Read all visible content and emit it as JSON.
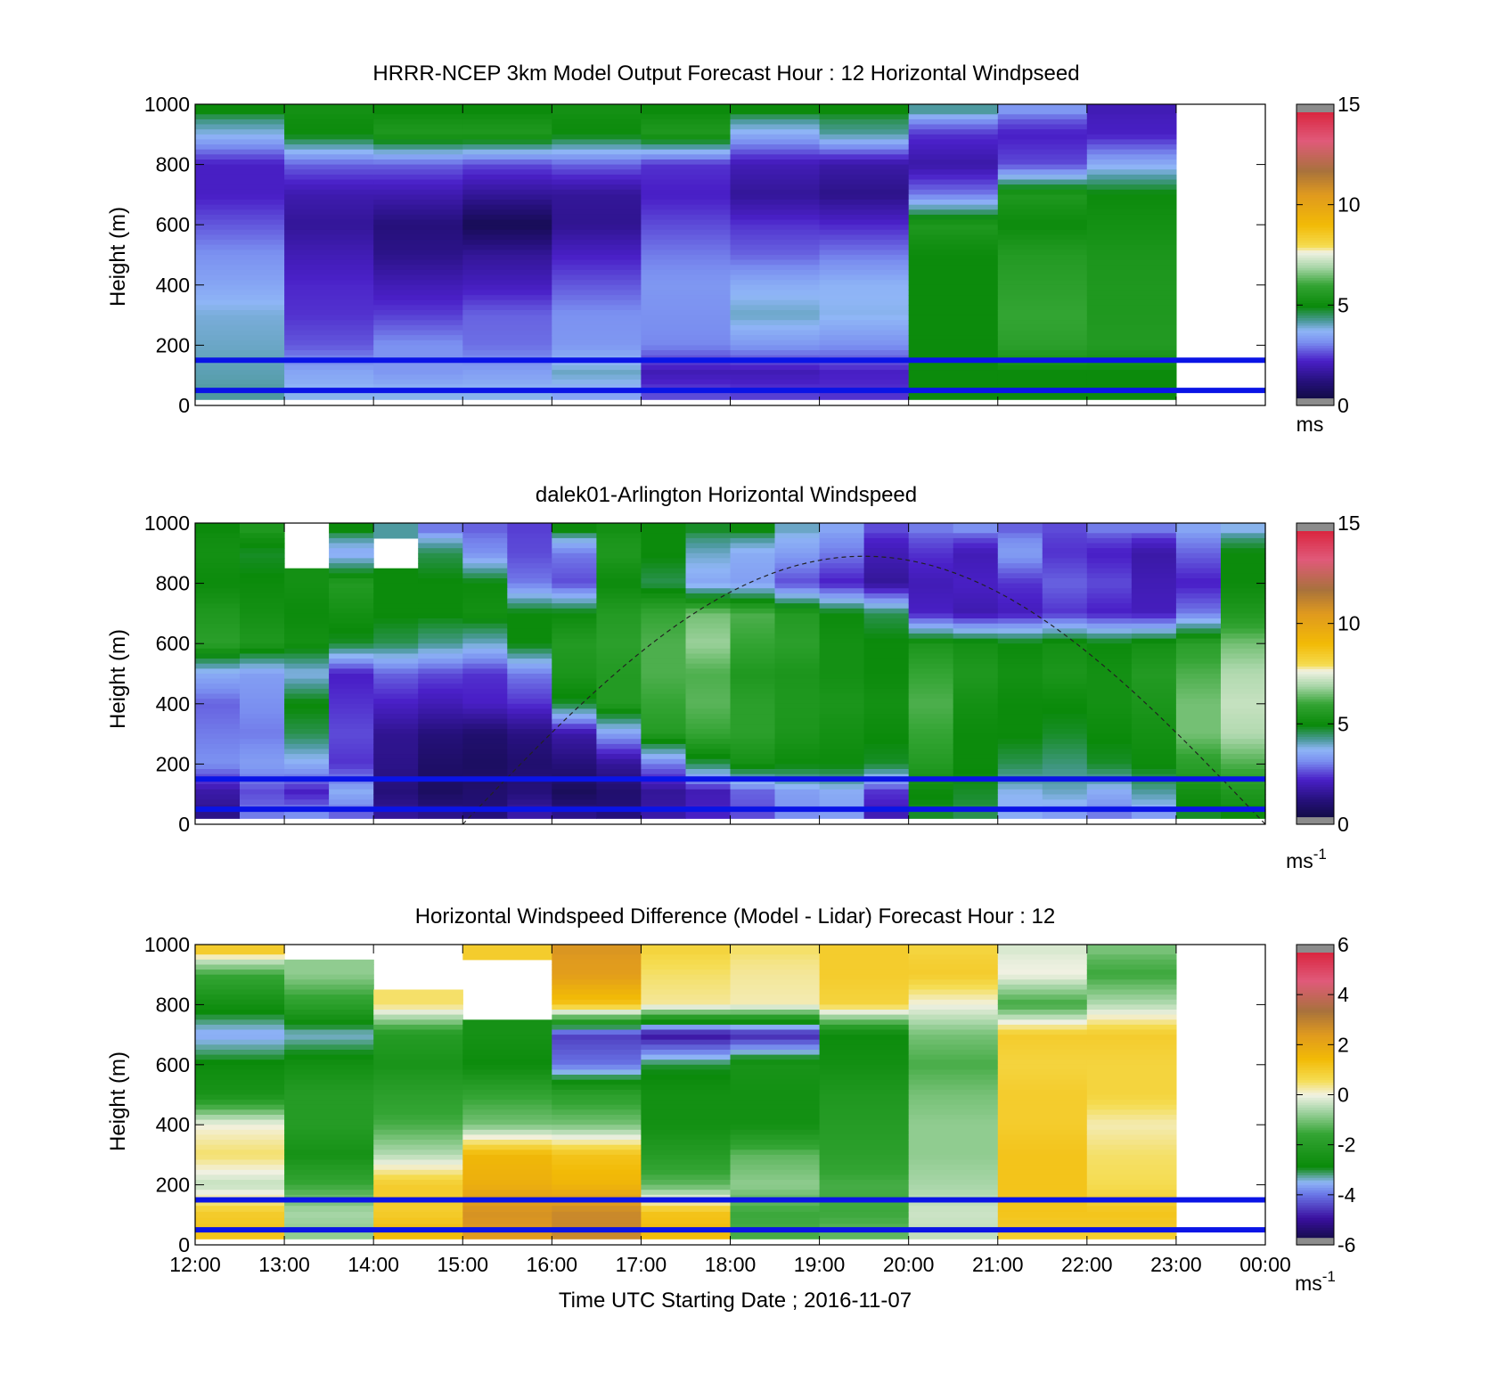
{
  "chart_data": [
    {
      "type": "heatmap",
      "title": "HRRR-NCEP 3km Model Output   Forecast Hour : 12 Horizontal Windpseed",
      "ylabel": "Height (m)",
      "ylim": [
        0,
        1000
      ],
      "yticks": [
        "0",
        "200",
        "400",
        "600",
        "800",
        "1000"
      ],
      "xlim_hours": [
        12,
        24
      ],
      "x_hours": [
        12,
        13,
        14,
        15,
        16,
        17,
        18,
        19,
        20,
        21,
        22
      ],
      "heights_m": [
        1000,
        900,
        800,
        700,
        600,
        500,
        400,
        300,
        200,
        100,
        40
      ],
      "values": [
        [
          5.0,
          5.2,
          5.0,
          5.0,
          5.2,
          5.0,
          5.0,
          5.0,
          4.2,
          3.3,
          2.0
        ],
        [
          3.8,
          5.0,
          5.5,
          5.5,
          5.0,
          5.5,
          3.6,
          4.2,
          2.4,
          2.2,
          2.2
        ],
        [
          2.2,
          2.8,
          2.8,
          2.6,
          2.8,
          2.4,
          2.0,
          1.8,
          1.8,
          2.6,
          3.6
        ],
        [
          2.2,
          1.9,
          1.9,
          1.6,
          1.6,
          2.2,
          1.6,
          1.4,
          3.0,
          5.5,
          5.0
        ],
        [
          2.7,
          1.6,
          1.2,
          0.6,
          1.5,
          2.6,
          2.4,
          2.3,
          5.5,
          5.0,
          5.2
        ],
        [
          3.2,
          2.0,
          1.4,
          1.6,
          2.2,
          3.0,
          2.8,
          3.0,
          5.0,
          5.6,
          5.4
        ],
        [
          3.5,
          2.3,
          2.0,
          2.1,
          2.7,
          3.3,
          3.6,
          3.7,
          5.0,
          5.8,
          5.5
        ],
        [
          3.9,
          2.4,
          2.5,
          2.8,
          3.2,
          3.2,
          4.0,
          3.8,
          5.0,
          6.0,
          5.5
        ],
        [
          4.0,
          2.7,
          3.2,
          2.9,
          3.3,
          3.1,
          3.3,
          3.2,
          5.0,
          5.8,
          5.6
        ],
        [
          4.1,
          3.5,
          3.3,
          3.4,
          4.0,
          2.0,
          2.0,
          2.2,
          5.0,
          5.0,
          5.0
        ],
        [
          4.2,
          3.8,
          3.8,
          3.8,
          3.5,
          2.6,
          2.5,
          2.4,
          5.0,
          5.0,
          5.0
        ]
      ],
      "reference_lines_m": [
        150,
        50
      ],
      "reference_line_color": "#0a14e6",
      "colorbar": {
        "ticks": [
          "0",
          "5",
          "10",
          "15"
        ],
        "range": [
          0,
          15
        ],
        "unit": "ms"
      }
    },
    {
      "type": "heatmap",
      "title": "dalek01-Arlington  Horizontal Windspeed",
      "ylabel": "Height (m)",
      "ylim": [
        0,
        1000
      ],
      "yticks": [
        "0",
        "200",
        "400",
        "600",
        "800",
        "1000"
      ],
      "xlim_hours": [
        12,
        24
      ],
      "x_hours": [
        12.0,
        12.5,
        13.0,
        13.5,
        14.0,
        14.5,
        15.0,
        15.5,
        16.0,
        16.5,
        17.0,
        17.5,
        18.0,
        18.5,
        19.0,
        19.5,
        20.0,
        20.5,
        21.0,
        21.5,
        22.0,
        22.5,
        23.0,
        23.5
      ],
      "heights_m": [
        1000,
        900,
        800,
        700,
        600,
        500,
        400,
        300,
        200,
        100,
        30
      ],
      "values": [
        [
          5.0,
          5.5,
          null,
          5.0,
          4.2,
          3.0,
          2.8,
          2.5,
          5.0,
          5.2,
          5.0,
          4.8,
          5.0,
          4.0,
          3.5,
          2.6,
          3.0,
          3.2,
          2.8,
          2.6,
          3.0,
          3.0,
          3.5,
          3.8
        ],
        [
          5.2,
          4.8,
          null,
          3.5,
          null,
          4.6,
          3.2,
          2.6,
          3.0,
          5.5,
          5.0,
          4.0,
          3.6,
          3.4,
          3.0,
          2.0,
          2.4,
          2.0,
          3.4,
          2.4,
          2.2,
          1.8,
          2.8,
          5.0
        ],
        [
          5.0,
          5.0,
          5.2,
          5.6,
          5.0,
          5.0,
          5.0,
          3.0,
          2.6,
          5.0,
          4.6,
          3.5,
          3.4,
          2.6,
          2.2,
          1.6,
          2.0,
          2.2,
          2.4,
          2.8,
          2.6,
          2.0,
          2.2,
          5.0
        ],
        [
          5.5,
          5.2,
          5.0,
          5.2,
          5.0,
          5.0,
          5.2,
          5.0,
          5.0,
          5.6,
          6.0,
          6.5,
          6.2,
          5.6,
          5.0,
          4.6,
          2.2,
          1.9,
          2.1,
          2.4,
          2.2,
          2.1,
          3.0,
          5.5
        ],
        [
          5.8,
          5.5,
          5.2,
          4.8,
          4.6,
          4.3,
          4.0,
          5.0,
          5.6,
          5.8,
          6.2,
          6.8,
          6.0,
          5.8,
          5.2,
          5.0,
          5.4,
          5.2,
          5.0,
          5.2,
          5.0,
          5.2,
          5.8,
          6.5
        ],
        [
          3.6,
          3.4,
          3.8,
          2.2,
          2.8,
          2.6,
          2.4,
          3.0,
          5.4,
          5.6,
          6.2,
          6.2,
          5.5,
          5.4,
          5.2,
          5.0,
          6.0,
          5.5,
          5.2,
          5.4,
          5.2,
          5.6,
          6.2,
          7.0
        ],
        [
          2.8,
          3.2,
          5.0,
          2.4,
          2.2,
          2.0,
          2.2,
          2.4,
          4.8,
          5.6,
          6.0,
          6.3,
          5.8,
          5.5,
          5.4,
          5.2,
          6.2,
          5.2,
          5.0,
          5.0,
          5.2,
          5.4,
          6.5,
          7.2
        ],
        [
          3.0,
          3.0,
          4.6,
          2.6,
          1.5,
          1.2,
          1.0,
          1.3,
          1.8,
          3.4,
          5.6,
          6.0,
          5.8,
          5.4,
          5.2,
          5.0,
          6.0,
          5.0,
          5.0,
          4.8,
          5.0,
          5.2,
          6.5,
          7.0
        ],
        [
          3.2,
          3.4,
          3.6,
          2.4,
          1.4,
          0.9,
          0.8,
          1.0,
          1.2,
          1.6,
          3.0,
          4.6,
          5.2,
          5.0,
          5.0,
          4.8,
          5.6,
          5.0,
          4.6,
          4.4,
          4.8,
          5.0,
          5.8,
          6.2
        ],
        [
          1.8,
          2.6,
          2.2,
          3.6,
          1.2,
          0.8,
          1.0,
          1.2,
          0.7,
          1.0,
          1.6,
          2.0,
          2.8,
          3.4,
          3.6,
          2.4,
          5.0,
          4.8,
          3.8,
          4.0,
          3.6,
          4.2,
          5.2,
          5.5
        ],
        [
          1.4,
          3.0,
          3.2,
          2.8,
          1.6,
          1.4,
          1.2,
          1.8,
          1.4,
          1.2,
          1.8,
          2.2,
          2.6,
          3.2,
          3.4,
          2.0,
          4.8,
          4.6,
          3.6,
          3.4,
          3.0,
          3.4,
          4.8,
          5.0
        ]
      ],
      "curve_label": "",
      "reference_lines_m": [
        150,
        50
      ],
      "reference_line_color": "#0a14e6",
      "colorbar": {
        "ticks": [
          "0",
          "5",
          "10",
          "15"
        ],
        "range": [
          0,
          15
        ],
        "unit": "ms",
        "unit_exp": "-1"
      }
    },
    {
      "type": "heatmap",
      "title": "Horizontal Windspeed Difference (Model - Lidar) Forecast Hour : 12",
      "ylabel": "Height (m)",
      "xlabel": "Time UTC  Starting Date ; 2016-11-07",
      "ylim": [
        0,
        1000
      ],
      "yticks": [
        "0",
        "200",
        "400",
        "600",
        "800",
        "1000"
      ],
      "xlim_hours": [
        12,
        24
      ],
      "xticks": [
        "12:00",
        "13:00",
        "14:00",
        "15:00",
        "16:00",
        "17:00",
        "18:00",
        "19:00",
        "20:00",
        "21:00",
        "22:00",
        "23:00",
        "00:00"
      ],
      "x_hours": [
        12,
        13,
        14,
        15,
        16,
        17,
        18,
        19,
        20,
        21,
        22
      ],
      "heights_m": [
        1000,
        900,
        800,
        700,
        600,
        500,
        400,
        300,
        200,
        100,
        40
      ],
      "values": [
        [
          1.0,
          null,
          null,
          1.0,
          2.5,
          0.8,
          0.5,
          1.0,
          0.8,
          -0.2,
          -1.0
        ],
        [
          -1.5,
          -0.8,
          null,
          null,
          2.3,
          0.5,
          0.3,
          1.0,
          1.0,
          0.0,
          -1.5
        ],
        [
          -2.6,
          -1.8,
          0.5,
          null,
          1.2,
          0.3,
          0.2,
          0.8,
          0.0,
          -1.5,
          -0.5
        ],
        [
          -3.6,
          -3.4,
          -2.0,
          -2.5,
          -4.5,
          -5.0,
          -4.8,
          -2.8,
          -1.0,
          1.0,
          1.0
        ],
        [
          -2.8,
          -2.6,
          -2.4,
          -2.8,
          -4.0,
          -3.0,
          -2.4,
          -2.6,
          -1.4,
          0.8,
          0.8
        ],
        [
          -2.4,
          -2.0,
          -1.8,
          -1.6,
          -1.8,
          -2.6,
          -2.6,
          -2.2,
          -1.0,
          1.0,
          0.8
        ],
        [
          0.0,
          -2.0,
          -1.4,
          -1.0,
          -1.0,
          -2.6,
          -2.6,
          -2.0,
          -0.8,
          1.0,
          0.2
        ],
        [
          0.5,
          -2.5,
          -0.5,
          1.5,
          1.2,
          -2.0,
          -1.2,
          -1.8,
          -0.8,
          1.2,
          0.5
        ],
        [
          -0.4,
          -1.5,
          1.0,
          1.8,
          1.6,
          -1.2,
          -0.8,
          -1.4,
          -0.6,
          1.2,
          0.6
        ],
        [
          1.0,
          -0.6,
          1.0,
          2.6,
          2.8,
          1.2,
          -1.5,
          -1.5,
          -0.3,
          1.2,
          1.2
        ],
        [
          1.2,
          -0.8,
          1.4,
          2.4,
          2.8,
          1.4,
          -1.4,
          -1.2,
          -0.4,
          1.0,
          1.0
        ]
      ],
      "reference_lines_m": [
        150,
        50
      ],
      "reference_line_color": "#0a14e6",
      "colorbar": {
        "ticks": [
          "-6",
          "-4",
          "-2",
          "0",
          "2",
          "4",
          "6"
        ],
        "range": [
          -6,
          6
        ],
        "unit": "ms",
        "unit_exp": "-1"
      }
    }
  ]
}
